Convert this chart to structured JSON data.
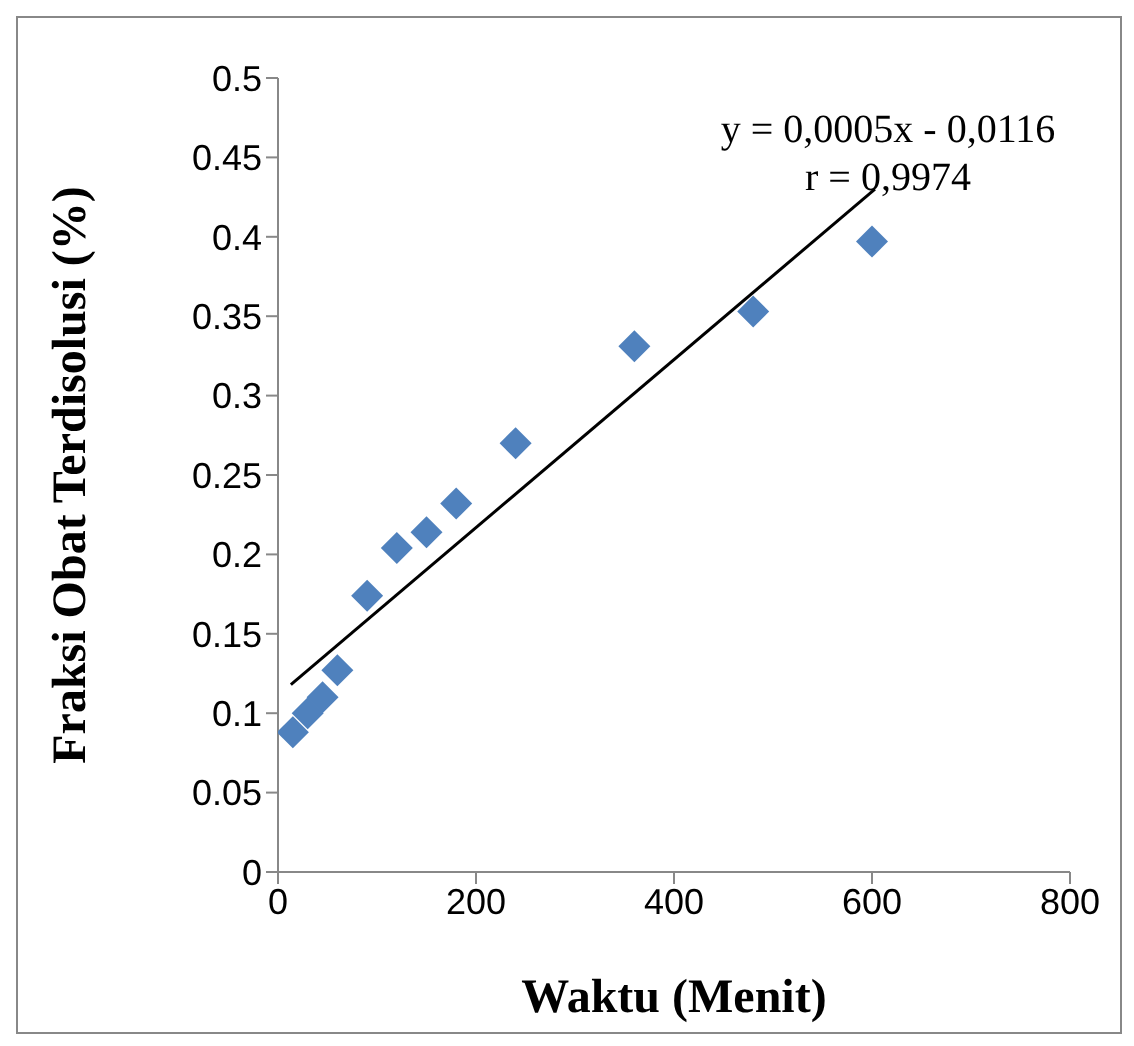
{
  "chart_data": {
    "type": "scatter",
    "xlabel": "Waktu (Menit)",
    "ylabel": "Fraksi Obat Terdisolusi (%)",
    "x": [
      15,
      30,
      45,
      60,
      90,
      120,
      150,
      180,
      240,
      360,
      480,
      600
    ],
    "series": [
      {
        "color": "#4f81bd",
        "marker": "diamond",
        "values": [
          0.088,
          0.1,
          0.11,
          0.127,
          0.174,
          0.204,
          0.214,
          0.232,
          0.27,
          0.331,
          0.353,
          0.397
        ]
      },
      {
        "type": "line",
        "marker": "none",
        "color": "#000000",
        "x": [
          13,
          603
        ],
        "values": [
          0.118,
          0.43
        ]
      }
    ],
    "annotations": [
      "y = 0,0005x - 0,0116",
      "r = 0,9974"
    ],
    "xlim": [
      0,
      800
    ],
    "xticks": [
      0,
      200,
      400,
      600,
      800
    ],
    "ylim": [
      0,
      0.5
    ],
    "yticks": [
      0,
      0.05,
      0.1,
      0.15,
      0.2,
      0.25,
      0.3,
      0.35,
      0.4,
      0.45,
      0.5
    ],
    "grid": false
  }
}
